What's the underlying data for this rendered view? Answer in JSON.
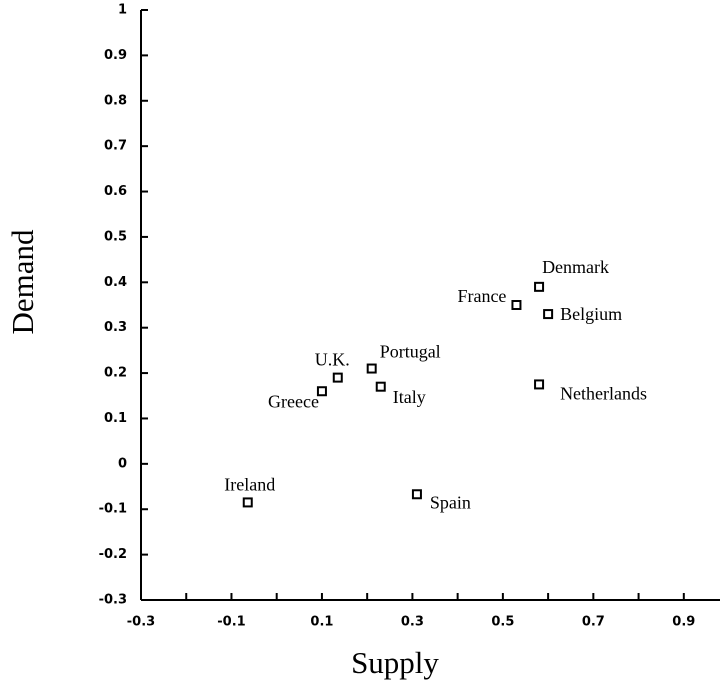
{
  "chart_data": {
    "type": "scatter",
    "x_label": "Supply",
    "y_label": "Demand",
    "points": [
      {
        "name": "Denmark",
        "x": 0.58,
        "y": 0.39
      },
      {
        "name": "France",
        "x": 0.53,
        "y": 0.35
      },
      {
        "name": "Belgium",
        "x": 0.6,
        "y": 0.33
      },
      {
        "name": "Netherlands",
        "x": 0.58,
        "y": 0.175
      },
      {
        "name": "Portugal",
        "x": 0.21,
        "y": 0.21
      },
      {
        "name": "U.K.",
        "x": 0.135,
        "y": 0.19
      },
      {
        "name": "Italy",
        "x": 0.23,
        "y": 0.17
      },
      {
        "name": "Greece",
        "x": 0.1,
        "y": 0.16
      },
      {
        "name": "Ireland",
        "x": -0.064,
        "y": -0.085
      },
      {
        "name": "Spain",
        "x": 0.31,
        "y": -0.067
      }
    ],
    "xlim": [
      -0.3,
      0.98
    ],
    "xticks": [
      -0.3,
      -0.1,
      0.1,
      0.3,
      0.5,
      0.7,
      0.9
    ],
    "xminor_ticks": [
      -0.2,
      0,
      0.2,
      0.4,
      0.6,
      0.8
    ],
    "ylim": [
      -0.3,
      1
    ],
    "yticks": [
      -0.3,
      -0.2,
      -0.1,
      0,
      0.1,
      0.2,
      0.3,
      0.4,
      0.5,
      0.6,
      0.7,
      0.8,
      0.9,
      1
    ],
    "color": "#000000"
  }
}
